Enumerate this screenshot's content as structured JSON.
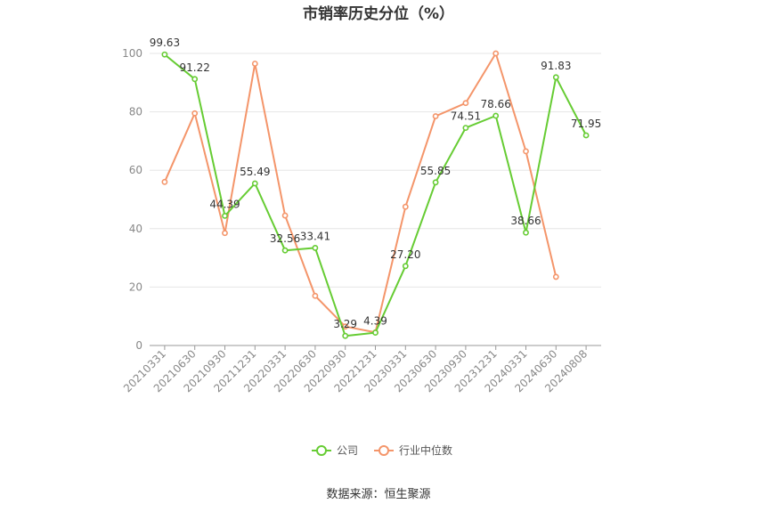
{
  "chart_data": {
    "type": "line",
    "title": "市销率历史分位（%）",
    "categories": [
      "20210331",
      "20210630",
      "20210930",
      "20211231",
      "20220331",
      "20220630",
      "20220930",
      "20221231",
      "20230331",
      "20230630",
      "20230930",
      "20231231",
      "20240331",
      "20240630",
      "20240808"
    ],
    "ylim": [
      0,
      100
    ],
    "yticks": [
      0,
      20,
      40,
      60,
      80,
      100
    ],
    "grid": true,
    "legend_position": "bottom",
    "series": [
      {
        "name": "公司",
        "color": "#66cc33",
        "values": [
          99.63,
          91.22,
          44.39,
          55.49,
          32.56,
          33.41,
          3.29,
          4.39,
          27.2,
          55.85,
          74.51,
          78.66,
          38.66,
          91.83,
          71.95
        ],
        "labels": [
          "99.63",
          "91.22",
          "44.39",
          "55.49",
          "32.56",
          "33.41",
          "3.29",
          "4.39",
          "27.20",
          "55.85",
          "74.51",
          "78.66",
          "38.66",
          "91.83",
          "71.95"
        ]
      },
      {
        "name": "行业中位数",
        "color": "#f4956a",
        "values": [
          56,
          79.5,
          38.5,
          96.5,
          44.5,
          17,
          6.5,
          4.5,
          47.5,
          78.5,
          83,
          100,
          66.5,
          23.5,
          null
        ]
      }
    ]
  },
  "footer": {
    "source": "数据来源：恒生聚源"
  }
}
